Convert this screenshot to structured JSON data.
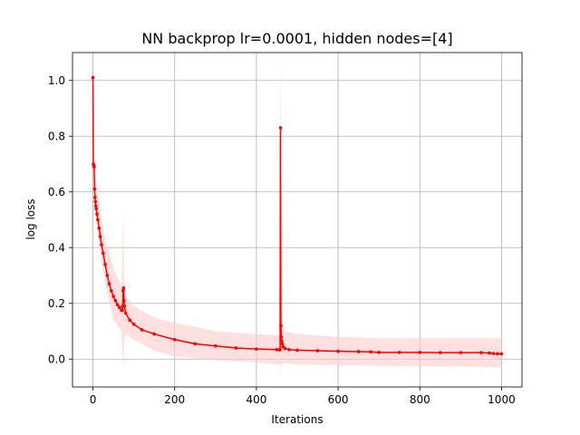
{
  "chart_data": {
    "type": "line",
    "title": "NN backprop lr=0.0001, hidden nodes=[4]",
    "xlabel": "Iterations",
    "ylabel": "log loss",
    "xlim": [
      -50,
      1050
    ],
    "ylim": [
      -0.1,
      1.1
    ],
    "xticks": [
      0,
      200,
      400,
      600,
      800,
      1000
    ],
    "xtick_labels": [
      "0",
      "200",
      "400",
      "600",
      "800",
      "1000"
    ],
    "yticks": [
      0.0,
      0.2,
      0.4,
      0.6,
      0.8,
      1.0
    ],
    "ytick_labels": [
      "0.0",
      "0.2",
      "0.4",
      "0.6",
      "0.8",
      "1.0"
    ],
    "grid": true,
    "colors": {
      "line": "#ff0000",
      "band": "#ffcccc",
      "grid": "#b0b0b0"
    },
    "series": [
      {
        "x": [
          0,
          1,
          2,
          3,
          4,
          5,
          6,
          7,
          8,
          10,
          12,
          15,
          18,
          21,
          25,
          30,
          35,
          40,
          45,
          50,
          55,
          60,
          65,
          70,
          72,
          73,
          74,
          75,
          76,
          77,
          80,
          90,
          100,
          120,
          150,
          200,
          250,
          300,
          350,
          400,
          450,
          457,
          458,
          459,
          460,
          461,
          462,
          463,
          465,
          470,
          480,
          500,
          550,
          600,
          650,
          680,
          700,
          750,
          800,
          850,
          900,
          950,
          970,
          980,
          990,
          1000
        ],
        "y": [
          1.01,
          0.7,
          0.695,
          0.69,
          0.61,
          0.58,
          0.565,
          0.55,
          0.54,
          0.52,
          0.5,
          0.47,
          0.44,
          0.41,
          0.38,
          0.34,
          0.3,
          0.27,
          0.245,
          0.225,
          0.21,
          0.195,
          0.185,
          0.175,
          0.175,
          0.19,
          0.245,
          0.255,
          0.21,
          0.19,
          0.165,
          0.14,
          0.125,
          0.105,
          0.09,
          0.07,
          0.055,
          0.047,
          0.04,
          0.036,
          0.034,
          0.033,
          0.035,
          0.83,
          0.12,
          0.08,
          0.065,
          0.055,
          0.045,
          0.038,
          0.034,
          0.032,
          0.03,
          0.028,
          0.027,
          0.026,
          0.024,
          0.024,
          0.024,
          0.023,
          0.023,
          0.023,
          0.022,
          0.02,
          0.019,
          0.019
        ],
        "band_x": [
          0,
          3,
          5,
          10,
          20,
          30,
          50,
          70,
          74,
          75,
          76,
          80,
          100,
          150,
          200,
          300,
          400,
          458,
          459,
          460,
          461,
          462,
          470,
          500,
          600,
          700,
          800,
          900,
          1000
        ],
        "band_lower": [
          0.99,
          0.68,
          0.55,
          0.47,
          0.36,
          0.27,
          0.14,
          0.1,
          -0.02,
          -0.03,
          0.05,
          0.09,
          0.07,
          0.03,
          0.01,
          -0.005,
          -0.012,
          -0.02,
          -0.02,
          -0.07,
          -0.02,
          -0.018,
          -0.015,
          -0.02,
          -0.022,
          -0.024,
          -0.026,
          -0.027,
          -0.03
        ],
        "band_upper": [
          1.03,
          0.72,
          0.67,
          0.61,
          0.51,
          0.43,
          0.33,
          0.26,
          0.5,
          0.54,
          0.3,
          0.23,
          0.19,
          0.15,
          0.13,
          0.1,
          0.09,
          0.085,
          0.95,
          1.1,
          0.2,
          0.14,
          0.1,
          0.09,
          0.08,
          0.075,
          0.075,
          0.075,
          0.075
        ]
      }
    ]
  }
}
